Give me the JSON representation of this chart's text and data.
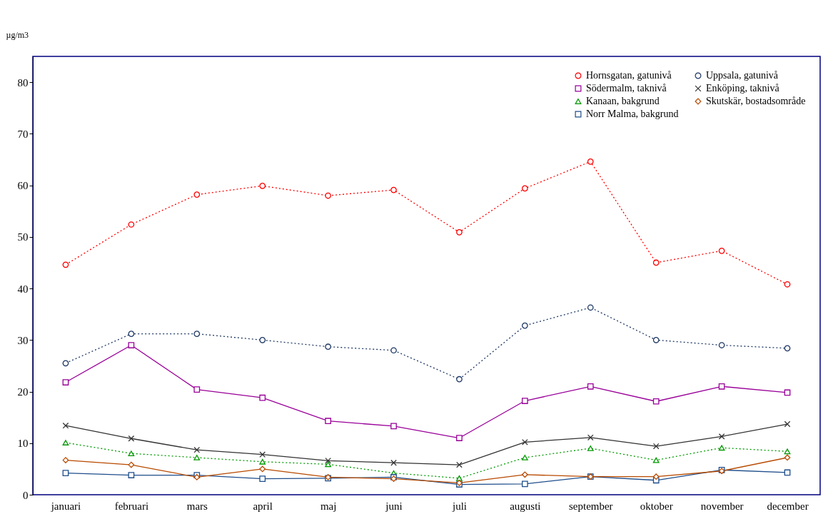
{
  "chart_data": {
    "type": "line",
    "ylabel": "µg/m3",
    "categories": [
      "januari",
      "februari",
      "mars",
      "april",
      "maj",
      "juni",
      "juli",
      "augusti",
      "september",
      "oktober",
      "november",
      "december"
    ],
    "ylim": [
      0,
      85
    ],
    "yticks": [
      0,
      10,
      20,
      30,
      40,
      50,
      60,
      70,
      80
    ],
    "grid": false,
    "legend": "top right",
    "series": [
      {
        "name": "Hornsgatan, gatunivå",
        "color": "#ff0000",
        "marker": "circle",
        "line_style": "dotted",
        "values": [
          44.6,
          52.4,
          58.2,
          59.9,
          58.0,
          59.1,
          50.9,
          59.4,
          64.6,
          45.0,
          47.3,
          40.8
        ]
      },
      {
        "name": "Södermalm, taknivå",
        "color": "#990099",
        "marker": "square",
        "line_style": "solid",
        "values": [
          21.8,
          29.0,
          20.4,
          18.8,
          14.3,
          13.3,
          11.0,
          18.2,
          21.0,
          18.1,
          21.0,
          19.8
        ]
      },
      {
        "name": "Kanaan, bakgrund",
        "color": "#009900",
        "marker": "triangle",
        "line_style": "dotted",
        "values": [
          10.1,
          8.0,
          7.2,
          6.4,
          5.9,
          4.2,
          3.2,
          7.2,
          9.0,
          6.7,
          9.1,
          8.4
        ]
      },
      {
        "name": "Norr Malma, bakgrund",
        "color": "#1f4e8c",
        "marker": "square",
        "line_style": "solid",
        "values": [
          4.2,
          3.8,
          3.8,
          3.1,
          3.2,
          3.4,
          2.0,
          2.1,
          3.5,
          2.8,
          4.8,
          4.3
        ]
      },
      {
        "name": "Uppsala, gatunivå",
        "color": "#1f3864",
        "marker": "circle",
        "line_style": "dotted",
        "values": [
          25.5,
          31.2,
          31.2,
          30.0,
          28.7,
          28.0,
          22.4,
          32.8,
          36.3,
          30.0,
          29.0,
          28.4
        ]
      },
      {
        "name": "Enköping, taknivå",
        "color": "#333333",
        "marker": "cross",
        "line_style": "solid",
        "values": [
          13.4,
          10.9,
          8.7,
          7.8,
          6.6,
          6.2,
          5.8,
          10.2,
          11.1,
          9.4,
          11.3,
          13.7
        ]
      },
      {
        "name": "Skutskär, bostadsområde",
        "color": "#b84a00",
        "marker": "diamond",
        "line_style": "solid",
        "values": [
          6.7,
          5.8,
          3.4,
          5.0,
          3.4,
          3.1,
          2.3,
          3.9,
          3.5,
          3.5,
          4.6,
          7.2
        ]
      }
    ]
  }
}
